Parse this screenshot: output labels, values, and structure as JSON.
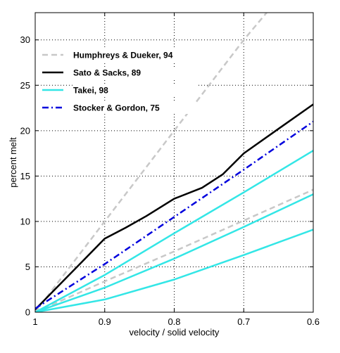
{
  "chart_data": {
    "type": "line",
    "xlabel": "velocity / solid velocity",
    "ylabel": "percent melt",
    "xlim": [
      1.0,
      0.6
    ],
    "ylim": [
      0,
      33
    ],
    "x_reversed": true,
    "x_ticks": [
      1.0,
      0.9,
      0.8,
      0.7,
      0.6
    ],
    "x_tick_labels": [
      "1",
      "0.9",
      "0.8",
      "0.7",
      "0.6"
    ],
    "y_ticks": [
      0,
      5,
      10,
      15,
      20,
      25,
      30
    ],
    "y_tick_labels": [
      "0",
      "5",
      "10",
      "15",
      "20",
      "25",
      "30"
    ],
    "grid": true,
    "legend_position": "top-left",
    "series": [
      {
        "name": "Humphreys & Dueker, 94",
        "color": "#c8c8c8",
        "style": "dashed",
        "lines": [
          [
            [
              1.0,
              0
            ],
            [
              0.9,
              10
            ],
            [
              0.8,
              20
            ],
            [
              0.7,
              30
            ],
            [
              0.667,
              33
            ]
          ],
          [
            [
              1.0,
              0
            ],
            [
              0.9,
              3.4
            ],
            [
              0.8,
              6.7
            ],
            [
              0.7,
              10.1
            ],
            [
              0.6,
              13.5
            ]
          ]
        ]
      },
      {
        "name": "Sato & Sacks, 89",
        "color": "#000000",
        "style": "solid",
        "lines": [
          [
            [
              1.0,
              0.3
            ],
            [
              0.95,
              4.2
            ],
            [
              0.9,
              8.1
            ],
            [
              0.87,
              9.3
            ],
            [
              0.84,
              10.6
            ],
            [
              0.8,
              12.5
            ],
            [
              0.76,
              13.7
            ],
            [
              0.73,
              15.2
            ],
            [
              0.7,
              17.5
            ],
            [
              0.65,
              20.2
            ],
            [
              0.6,
              22.9
            ]
          ]
        ]
      },
      {
        "name": "Takei, 98",
        "color": "#33e6e6",
        "style": "solid",
        "lines": [
          [
            [
              1.0,
              0
            ],
            [
              0.9,
              4.1
            ],
            [
              0.8,
              8.7
            ],
            [
              0.7,
              13.2
            ],
            [
              0.6,
              17.8
            ]
          ],
          [
            [
              1.0,
              0
            ],
            [
              0.9,
              2.7
            ],
            [
              0.8,
              5.9
            ],
            [
              0.7,
              9.4
            ],
            [
              0.6,
              13.0
            ]
          ],
          [
            [
              1.0,
              0
            ],
            [
              0.9,
              1.4
            ],
            [
              0.8,
              3.6
            ],
            [
              0.7,
              6.3
            ],
            [
              0.6,
              9.1
            ]
          ]
        ]
      },
      {
        "name": "Stocker & Gordon, 75",
        "color": "#0000dd",
        "style": "dashdot",
        "lines": [
          [
            [
              1.0,
              0.4
            ],
            [
              0.9,
              5.3
            ],
            [
              0.8,
              10.5
            ],
            [
              0.7,
              15.7
            ],
            [
              0.6,
              21.0
            ]
          ]
        ]
      }
    ]
  }
}
